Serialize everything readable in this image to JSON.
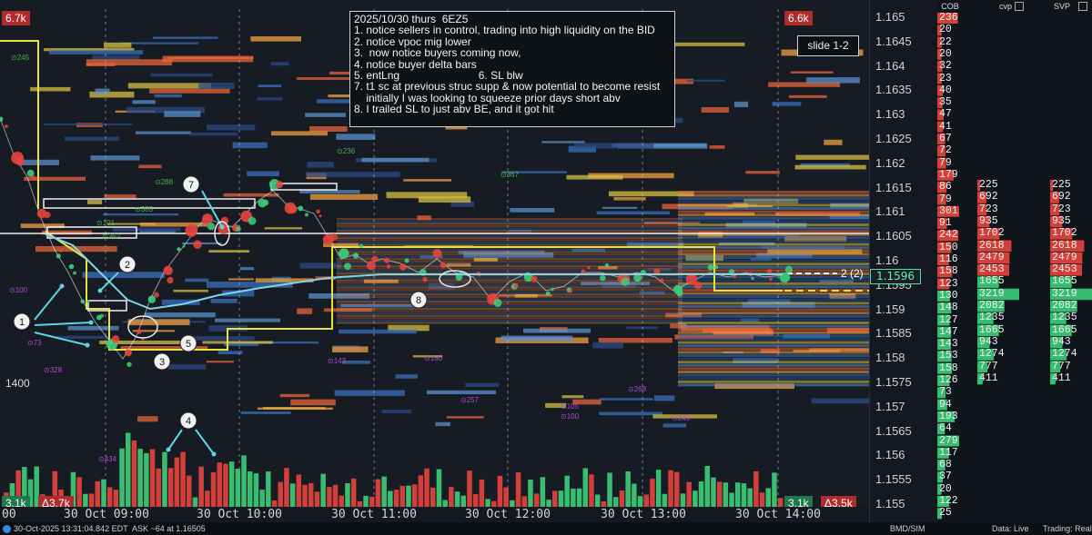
{
  "corners": {
    "top_left": "6.7k",
    "top_right": "6.6k",
    "bottom_left_vol": "3.1k",
    "bottom_left_delta": "Δ3.7k",
    "bottom_right_vol": "3.1k",
    "bottom_right_delta": "Δ3.5k",
    "mid_left": "1400"
  },
  "note": {
    "lines": [
      "2025/10/30 thurs  6EZ5",
      "1. notice sellers in control, trading into high liquidity on the BID",
      "2. notice vpoc mig lower",
      "3.  now notice buyers coming now,",
      "4. notice buyer delta bars",
      "5. entLng                          6. SL blw",
      "7. t1 sc at previous struc supp & now potential to become resist",
      "    initially I was looking to squeeze prior days short abv",
      "8. I trailed SL to just abv BE, and it got hit"
    ]
  },
  "slide_label": "slide 1-2",
  "position_marker": "2 (2)",
  "annotations": [
    "1",
    "2",
    "3",
    "4",
    "5",
    "7",
    "8"
  ],
  "small_labels": [
    "⊙245",
    "⊙101",
    "⊙385",
    "⊙288",
    "⊙362",
    "⊙100",
    "⊙73",
    "⊙328",
    "⊙236",
    "⊙367",
    "⊙143",
    "⊙180",
    "⊙257",
    "⊙105",
    "⊙100",
    "⊙268",
    "⊙249",
    "⊙434"
  ],
  "price_axis": {
    "labels": [
      "1.165",
      "1.1645",
      "1.164",
      "1.1635",
      "1.163",
      "1.1625",
      "1.162",
      "1.1615",
      "1.161",
      "1.1605",
      "1.16",
      "1.1595",
      "1.159",
      "1.1585",
      "1.158",
      "1.1575",
      "1.157",
      "1.1565",
      "1.156",
      "1.1555",
      "1.155"
    ],
    "current": "1.1596"
  },
  "time_axis": [
    "00",
    "30 Oct 09:00",
    "30 Oct 10:00",
    "30 Oct 11:00",
    "30 Oct 12:00",
    "30 Oct 13:00",
    "30 Oct 14:00"
  ],
  "panels": {
    "cob": {
      "title": "COB",
      "values": [
        "236",
        "20",
        "22",
        "20",
        "32",
        "23",
        "40",
        "35",
        "47",
        "41",
        "67",
        "72",
        "79",
        "179",
        "86",
        "79",
        "301",
        "91",
        "242",
        "150",
        "116",
        "158",
        "123",
        "130",
        "148",
        "127",
        "147",
        "143",
        "153",
        "158",
        "126",
        "73",
        "94",
        "193",
        "64",
        "279",
        "117",
        "68",
        "37",
        "20",
        "122",
        "25"
      ]
    },
    "cvp": {
      "title": "cvp",
      "values": [
        "225",
        "692",
        "723",
        "935",
        "1702",
        "2618",
        "2479",
        "2453",
        "1655",
        "3219",
        "2082",
        "1235",
        "1665",
        "943",
        "1274",
        "777",
        "411"
      ]
    },
    "svp": {
      "title": "SVP",
      "values": [
        "225",
        "692",
        "723",
        "935",
        "1702",
        "2618",
        "2479",
        "2453",
        "1655",
        "3219",
        "2082",
        "1235",
        "1665",
        "943",
        "1274",
        "777",
        "411"
      ]
    }
  },
  "status": {
    "timestamp": "30-Oct-2025 13:31:04.842 EDT",
    "ask": "ASK ~64 at 1.16505",
    "feed": "BMD/SIM",
    "data": "Data: Live",
    "trading": "Trading: Real"
  },
  "colors": {
    "bid_red": "#e8453c",
    "ask_green": "#3ccf7a",
    "vwap": "#7fd6e8",
    "yellow_box": "#e8e23a",
    "background": "#161b24"
  }
}
